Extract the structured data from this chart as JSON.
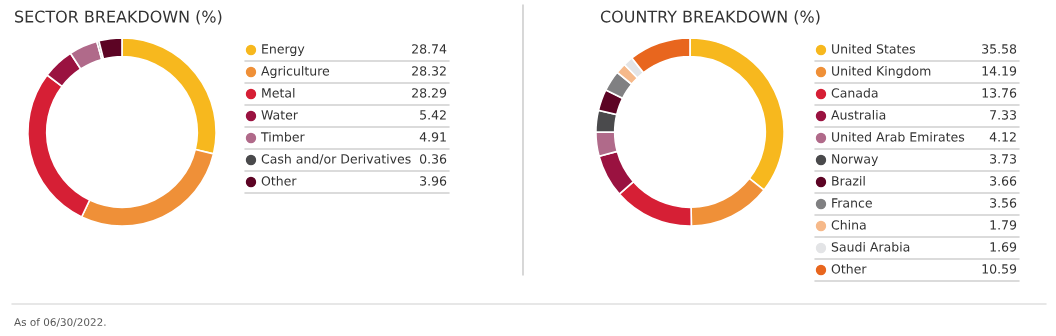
{
  "chart_data": [
    {
      "type": "donut",
      "title": "SECTOR BREAKDOWN (%)",
      "categories": [
        "Energy",
        "Agriculture",
        "Metal",
        "Water",
        "Timber",
        "Cash and/or Derivatives",
        "Other"
      ],
      "values": [
        28.74,
        28.32,
        28.29,
        5.42,
        4.91,
        0.36,
        3.96
      ],
      "colors": [
        "#f7b81e",
        "#ef9038",
        "#d61f35",
        "#9a1240",
        "#b06a8a",
        "#4a4a4c",
        "#5c0424"
      ],
      "data_labels": true,
      "legend": "right",
      "annotations": [
        "As of 06/30/2022."
      ]
    },
    {
      "type": "donut",
      "title": "COUNTRY BREAKDOWN (%)",
      "categories": [
        "United States",
        "United Kingdom",
        "Canada",
        "Australia",
        "United Arab Emirates",
        "Norway",
        "Brazil",
        "France",
        "China",
        "Saudi Arabia",
        "Other"
      ],
      "values": [
        35.58,
        14.19,
        13.76,
        7.33,
        4.12,
        3.73,
        3.66,
        3.56,
        1.79,
        1.69,
        10.59
      ],
      "colors": [
        "#f7b81e",
        "#ef9038",
        "#d61f35",
        "#9a1240",
        "#b06a8a",
        "#4a4a4c",
        "#5c0424",
        "#808082",
        "#f6b98a",
        "#e3e4e6",
        "#e8661e"
      ],
      "data_labels": true,
      "legend": "right"
    }
  ]
}
